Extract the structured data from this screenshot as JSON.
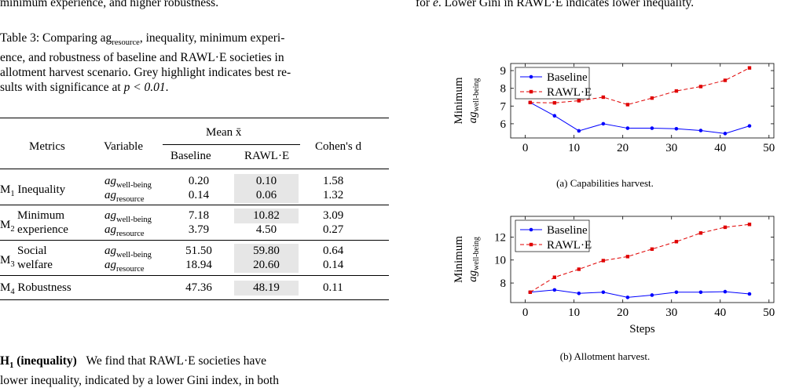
{
  "left_top_line": "minimum experience, and higher robustness.",
  "right_top_line_pre": "for ",
  "right_top_line_var": "e",
  "right_top_line_post": ". Lower Gini in RAWL·E indicates lower inequality.",
  "table_caption": {
    "line1": "Table 3: Comparing ag",
    "line1_sub": "resource",
    "line1_rest": ", inequality, minimum experi-",
    "line2": "ence, and robustness of baseline and RAWL·E societies in",
    "line3": "allotment harvest scenario. Grey highlight indicates best re-",
    "line4_pre": "sults with significance at ",
    "line4_math": "p < 0.01",
    "line4_post": "."
  },
  "table": {
    "headers": {
      "metrics": "Metrics",
      "variable": "Variable",
      "mean": "Mean x̄",
      "baseline": "Baseline",
      "rawle": "RAWL·E",
      "cohens": "Cohen's d"
    },
    "rows": [
      {
        "metric_a": "M",
        "metric_sub": "1",
        "metric_b": " Inequality",
        "metric_c": "",
        "v1": "ag",
        "v1s": "well-being",
        "v2": "ag",
        "v2s": "resource",
        "b1": "0.20",
        "b2": "0.14",
        "r1": "0.10",
        "r2": "0.06",
        "d1": "1.58",
        "d2": "1.32"
      },
      {
        "metric_a": "M",
        "metric_sub": "2",
        "metric_b": "Minimum",
        "metric_c": "experience",
        "v1": "ag",
        "v1s": "well-being",
        "v2": "ag",
        "v2s": "resource",
        "b1": "7.18",
        "b2": "3.79",
        "r1": "10.82",
        "r2": "4.50",
        "d1": "3.09",
        "d2": "0.27"
      },
      {
        "metric_a": "M",
        "metric_sub": "3",
        "metric_b": "Social",
        "metric_c": "welfare",
        "v1": "ag",
        "v1s": "well-being",
        "v2": "ag",
        "v2s": "resource",
        "b1": "51.50",
        "b2": "18.94",
        "r1": "59.80",
        "r2": "20.60",
        "d1": "0.64",
        "d2": "0.14"
      },
      {
        "metric_a": "M",
        "metric_sub": "4",
        "metric_b": " Robustness",
        "metric_c": "",
        "b1": "47.36",
        "r1": "48.19",
        "d1": "0.11"
      }
    ]
  },
  "h1": {
    "bold": "H",
    "bold_sub": "1",
    "bold_rest": " (inequality)",
    "text": "We find that RAWL·E societies have",
    "line2": "lower inequality, indicated by a lower Gini index, in both"
  },
  "figures": [
    {
      "caption": "(a) Capabilities harvest.",
      "ylabel_line1": "Minimum",
      "ylabel_line2": "ag",
      "ylabel_sub": "well-being",
      "xlabel": "",
      "legend": [
        "Baseline",
        "RAWL·E"
      ]
    },
    {
      "caption": "(b) Allotment harvest.",
      "ylabel_line1": "Minimum",
      "ylabel_line2": "ag",
      "ylabel_sub": "well-being",
      "xlabel": "Steps",
      "legend": [
        "Baseline",
        "RAWL·E"
      ]
    }
  ],
  "chart_data": [
    {
      "type": "line",
      "x": [
        1,
        6,
        11,
        16,
        21,
        26,
        31,
        36,
        41,
        46
      ],
      "series": [
        {
          "name": "Baseline",
          "color": "#0000ff",
          "values": [
            7.2,
            6.45,
            5.6,
            6.0,
            5.75,
            5.75,
            5.72,
            5.62,
            5.45,
            5.88
          ]
        },
        {
          "name": "RAWL·E",
          "color": "#e00000",
          "values": [
            7.2,
            7.18,
            7.3,
            7.5,
            7.08,
            7.45,
            7.85,
            8.1,
            8.45,
            9.15
          ]
        }
      ],
      "xlim": [
        -3,
        51
      ],
      "ylim": [
        5.2,
        9.4
      ],
      "xticks": [
        0,
        10,
        20,
        30,
        40,
        50
      ],
      "yticks": [
        6,
        7,
        8,
        9
      ],
      "legend_position": "top-left"
    },
    {
      "type": "line",
      "x": [
        1,
        6,
        11,
        16,
        21,
        26,
        31,
        36,
        41,
        46
      ],
      "series": [
        {
          "name": "Baseline",
          "color": "#0000ff",
          "values": [
            7.2,
            7.4,
            7.1,
            7.2,
            6.75,
            6.95,
            7.2,
            7.2,
            7.25,
            7.05
          ]
        },
        {
          "name": "RAWL·E",
          "color": "#e00000",
          "values": [
            7.2,
            8.5,
            9.2,
            9.95,
            10.3,
            10.95,
            11.6,
            12.35,
            12.85,
            13.1
          ]
        }
      ],
      "xlim": [
        -3,
        51
      ],
      "ylim": [
        6.3,
        13.8
      ],
      "xticks": [
        0,
        10,
        20,
        30,
        40,
        50
      ],
      "yticks": [
        8,
        10,
        12
      ],
      "legend_position": "top-left"
    }
  ]
}
